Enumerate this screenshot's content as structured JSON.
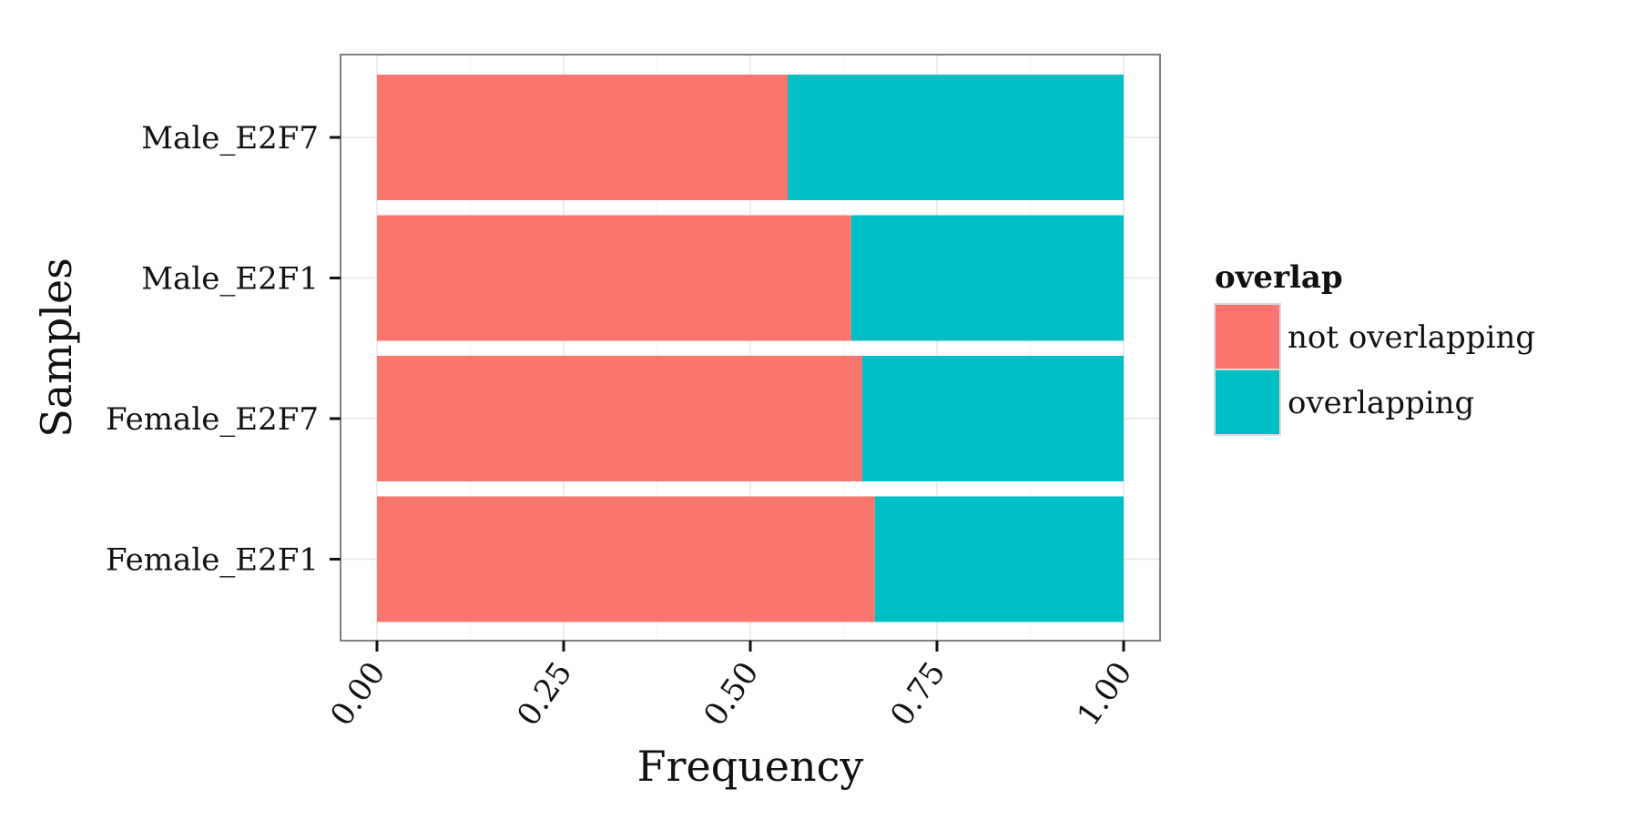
{
  "chart_data": {
    "type": "bar",
    "orientation": "horizontal",
    "stacked": true,
    "categories": [
      "Male_E2F7",
      "Male_E2F1",
      "Female_E2F7",
      "Female_E2F1"
    ],
    "series": [
      {
        "name": "not overlapping",
        "color": "#F8766D",
        "values": [
          0.55,
          0.635,
          0.65,
          0.667
        ]
      },
      {
        "name": "overlapping",
        "color": "#00BFC4",
        "values": [
          0.45,
          0.365,
          0.35,
          0.333
        ]
      }
    ],
    "xlabel": "Frequency",
    "ylabel": "Samples",
    "xlim": [
      0,
      1
    ],
    "xticks": [
      "0.00",
      "0.25",
      "0.50",
      "0.75",
      "1.00"
    ],
    "xtick_values": [
      0,
      0.25,
      0.5,
      0.75,
      1
    ],
    "legend": {
      "title": "overlap",
      "position": "right"
    },
    "grid": true
  }
}
